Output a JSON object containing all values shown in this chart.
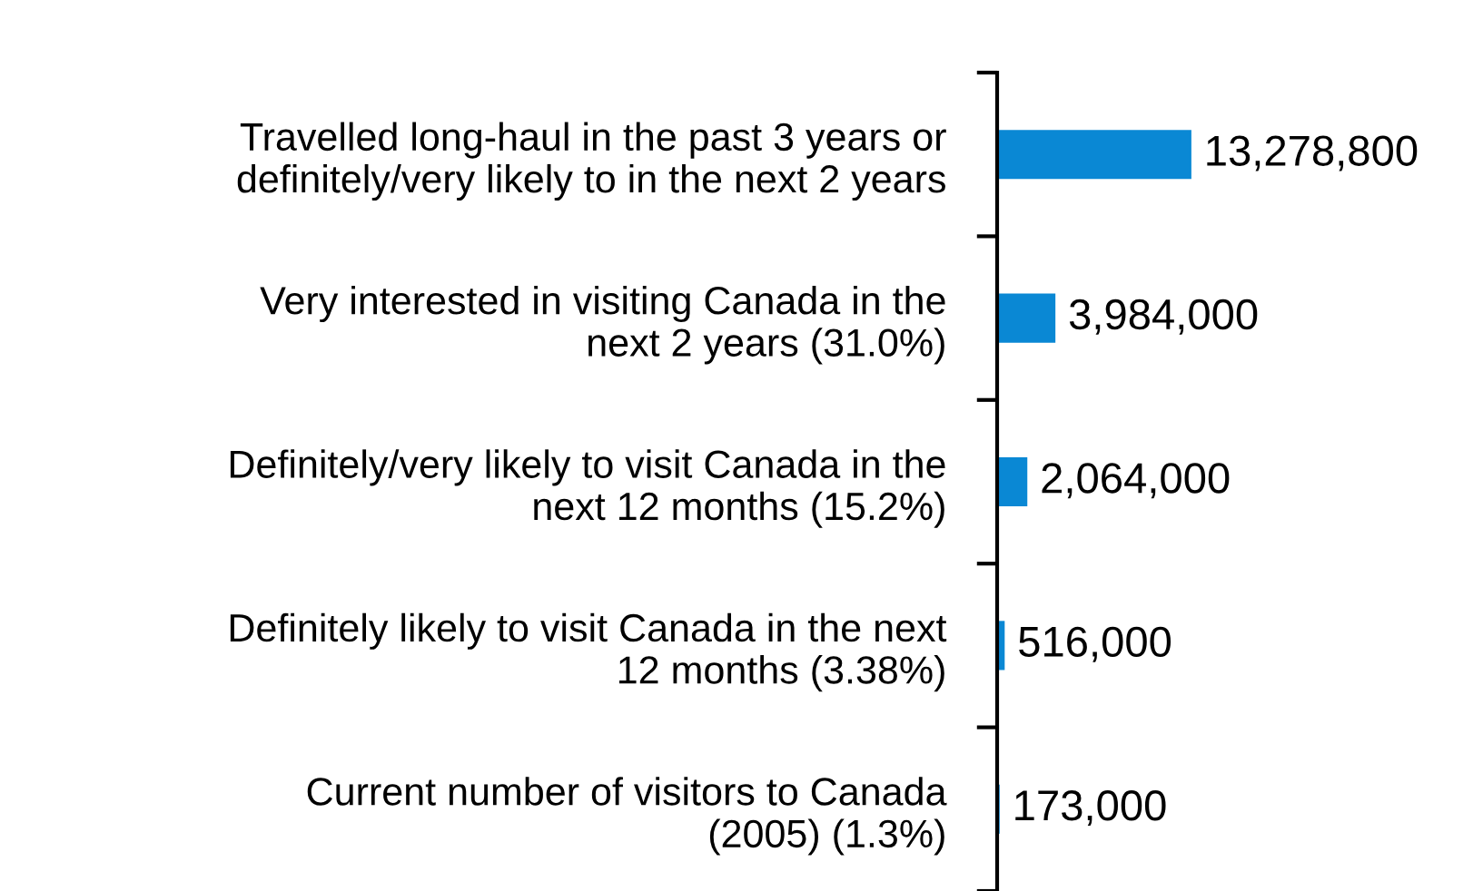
{
  "chart_data": {
    "type": "bar",
    "orientation": "horizontal",
    "categories": [
      "Travelled long-haul in the past 3 years or\ndefinitely/very likely to in the next 2 years",
      "Very interested in visiting Canada in the\nnext 2 years (31.0%)",
      "Definitely/very likely to visit Canada in the\nnext 12 months (15.2%)",
      "Definitely likely to visit Canada in the next\n12 months (3.38%)",
      "Current number of visitors to Canada\n(2005) (1.3%)"
    ],
    "values": [
      13278800,
      3984000,
      2064000,
      516000,
      173000
    ],
    "value_labels": [
      "13,278,800",
      "3,984,000",
      "2,064,000",
      "516,000",
      "173,000"
    ],
    "color": "#0a88d4",
    "grid": false,
    "legend": false
  }
}
